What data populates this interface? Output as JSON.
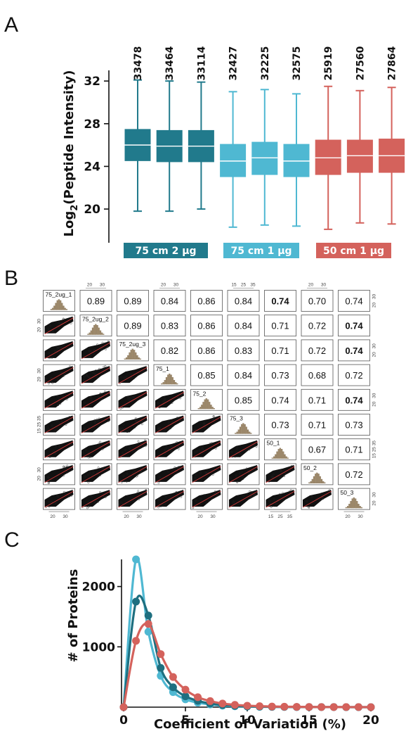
{
  "panels": {
    "a": "A",
    "b": "B",
    "c": "C"
  },
  "chart_data": [
    {
      "type": "box",
      "panel": "A",
      "ylabel_main": "Log",
      "ylabel_sub": "2",
      "ylabel_rest": "(Peptide Intensity)",
      "ylim": [
        17.5,
        33
      ],
      "yticks": [
        20,
        24,
        28,
        32
      ],
      "grid": false,
      "boxes": [
        {
          "count": "33478",
          "color": "#217a8c",
          "group": 0,
          "min": 19.8,
          "q1": 24.5,
          "median": 26.0,
          "q3": 27.5,
          "max": 32.1
        },
        {
          "count": "33464",
          "color": "#217a8c",
          "group": 0,
          "min": 19.8,
          "q1": 24.4,
          "median": 25.9,
          "q3": 27.4,
          "max": 32.0
        },
        {
          "count": "33114",
          "color": "#217a8c",
          "group": 0,
          "min": 20.0,
          "q1": 24.4,
          "median": 25.9,
          "q3": 27.4,
          "max": 31.9
        },
        {
          "count": "32427",
          "color": "#4fb8d2",
          "group": 1,
          "min": 18.3,
          "q1": 23.0,
          "median": 24.5,
          "q3": 26.1,
          "max": 31.0
        },
        {
          "count": "32225",
          "color": "#4fb8d2",
          "group": 1,
          "min": 18.5,
          "q1": 23.2,
          "median": 24.8,
          "q3": 26.3,
          "max": 31.2
        },
        {
          "count": "32575",
          "color": "#4fb8d2",
          "group": 1,
          "min": 18.4,
          "q1": 23.0,
          "median": 24.5,
          "q3": 26.1,
          "max": 30.8
        },
        {
          "count": "25919",
          "color": "#d4625c",
          "group": 2,
          "min": 18.1,
          "q1": 23.2,
          "median": 24.8,
          "q3": 26.5,
          "max": 31.5
        },
        {
          "count": "27560",
          "color": "#d4625c",
          "group": 2,
          "min": 18.7,
          "q1": 23.4,
          "median": 25.0,
          "q3": 26.5,
          "max": 31.1
        },
        {
          "count": "27864",
          "color": "#d4625c",
          "group": 2,
          "min": 18.6,
          "q1": 23.4,
          "median": 25.0,
          "q3": 26.6,
          "max": 31.4
        }
      ],
      "groups": [
        {
          "label": "75 cm 2 µg",
          "color": "#217a8c"
        },
        {
          "label": "75 cm 1 µg",
          "color": "#4fb8d2"
        },
        {
          "label": "50 cm 1 µg",
          "color": "#d4625c"
        }
      ]
    },
    {
      "type": "scatter-matrix",
      "panel": "B",
      "samples": [
        "75_2ug_1",
        "75_2ug_2",
        "75_2ug_3",
        "75_1",
        "75_2",
        "75_3",
        "50_1",
        "50_2",
        "50_3"
      ],
      "correlations": [
        [
          "",
          "0.89",
          "0.89",
          "0.84",
          "0.86",
          "0.84",
          "0.74",
          "0.70",
          "0.74"
        ],
        [
          "",
          "",
          "0.89",
          "0.83",
          "0.86",
          "0.84",
          "0.71",
          "0.72",
          "0.74"
        ],
        [
          "",
          "",
          "",
          "0.82",
          "0.86",
          "0.83",
          "0.71",
          "0.72",
          "0.74"
        ],
        [
          "",
          "",
          "",
          "",
          "0.85",
          "0.84",
          "0.73",
          "0.68",
          "0.72"
        ],
        [
          "",
          "",
          "",
          "",
          "",
          "0.85",
          "0.74",
          "0.71",
          "0.74"
        ],
        [
          "",
          "",
          "",
          "",
          "",
          "",
          "0.73",
          "0.71",
          "0.73"
        ],
        [
          "",
          "",
          "",
          "",
          "",
          "",
          "",
          "0.67",
          "0.71"
        ],
        [
          "",
          "",
          "",
          "",
          "",
          "",
          "",
          "",
          "0.72"
        ],
        [
          "",
          "",
          "",
          "",
          "",
          "",
          "",
          "",
          ""
        ]
      ],
      "bold_cells": [
        "0-6",
        "1-8",
        "2-8",
        "4-8"
      ],
      "histogram_color": "#a08a6a",
      "fit_line_color": "#d43a3a",
      "top_ticks": [
        {
          "col": 1,
          "labels": [
            "20",
            "30"
          ]
        },
        {
          "col": 3,
          "labels": [
            "20",
            "30"
          ]
        },
        {
          "col": 5,
          "labels": [
            "15",
            "25",
            "35"
          ]
        },
        {
          "col": 7,
          "labels": [
            "20",
            "30"
          ]
        }
      ],
      "bottom_ticks": [
        {
          "col": 0,
          "labels": [
            "20",
            "30"
          ]
        },
        {
          "col": 2,
          "labels": [
            "20",
            "30"
          ]
        },
        {
          "col": 4,
          "labels": [
            "20",
            "30"
          ]
        },
        {
          "col": 6,
          "labels": [
            "15",
            "25",
            "35"
          ]
        },
        {
          "col": 8,
          "labels": [
            "20",
            "30"
          ]
        }
      ],
      "left_ticks": [
        {
          "row": 1,
          "labels": [
            "20",
            "30"
          ]
        },
        {
          "row": 3,
          "labels": [
            "20",
            "30"
          ]
        },
        {
          "row": 5,
          "labels": [
            "15",
            "25",
            "35"
          ]
        },
        {
          "row": 7,
          "labels": [
            "20",
            "30"
          ]
        }
      ],
      "right_ticks": [
        {
          "row": 0,
          "labels": [
            "20",
            "30"
          ]
        },
        {
          "row": 2,
          "labels": [
            "20",
            "30"
          ]
        },
        {
          "row": 4,
          "labels": [
            "20",
            "30"
          ]
        },
        {
          "row": 6,
          "labels": [
            "15",
            "25",
            "35"
          ]
        },
        {
          "row": 8,
          "labels": [
            "20",
            "30"
          ]
        }
      ]
    },
    {
      "type": "line",
      "panel": "C",
      "xlabel": "Coefficient of Variation (%)",
      "ylabel": "# of Proteins",
      "xlim": [
        0,
        20
      ],
      "ylim": [
        0,
        2450
      ],
      "xticks": [
        0,
        5,
        10,
        15,
        20
      ],
      "yticks": [
        1000,
        2000
      ],
      "grid": false,
      "x": [
        0,
        1,
        2,
        3,
        4,
        5,
        6,
        7,
        8,
        9,
        10,
        11,
        12,
        13,
        14,
        15,
        16,
        17,
        18,
        19,
        20
      ],
      "series": [
        {
          "color": "#4fb8d2",
          "values": [
            0,
            2450,
            1250,
            520,
            250,
            130,
            75,
            45,
            25,
            15,
            10,
            6,
            4,
            3,
            2,
            1,
            1,
            1,
            0,
            0,
            0
          ]
        },
        {
          "color": "#1e6f80",
          "values": [
            0,
            1750,
            1520,
            650,
            330,
            180,
            105,
            60,
            35,
            22,
            14,
            9,
            6,
            4,
            3,
            2,
            1,
            1,
            0,
            0,
            0
          ]
        },
        {
          "color": "#d4625c",
          "values": [
            0,
            1100,
            1380,
            880,
            500,
            290,
            165,
            100,
            60,
            38,
            24,
            16,
            10,
            7,
            5,
            3,
            2,
            2,
            1,
            1,
            0
          ]
        }
      ]
    }
  ]
}
